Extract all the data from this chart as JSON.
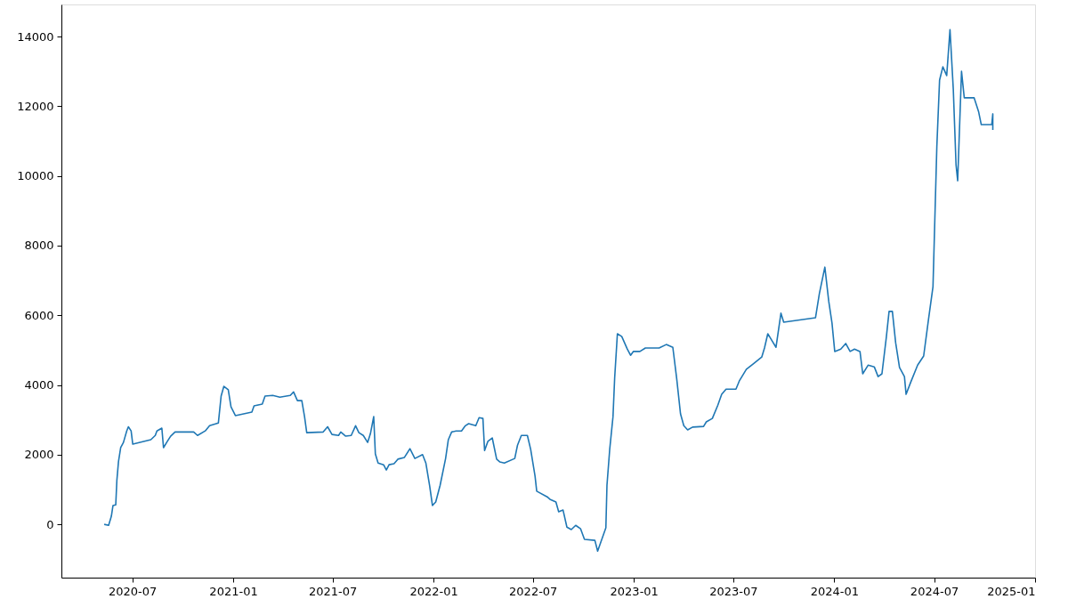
{
  "chart_data": {
    "type": "line",
    "x": [
      "2020-05-11",
      "2020-05-19",
      "2020-05-24",
      "2020-05-27",
      "2020-06-01",
      "2020-06-03",
      "2020-06-06",
      "2020-06-10",
      "2020-06-15",
      "2020-06-21",
      "2020-06-24",
      "2020-06-29",
      "2020-07-02",
      "2020-08-04",
      "2020-08-12",
      "2020-08-15",
      "2020-08-24",
      "2020-08-27",
      "2020-09-03",
      "2020-09-09",
      "2020-09-17",
      "2020-10-21",
      "2020-10-28",
      "2020-11-11",
      "2020-11-19",
      "2020-12-05",
      "2020-12-10",
      "2020-12-15",
      "2020-12-23",
      "2020-12-28",
      "2021-01-05",
      "2021-02-04",
      "2021-02-08",
      "2021-02-23",
      "2021-02-28",
      "2021-03-14",
      "2021-03-27",
      "2021-04-15",
      "2021-04-21",
      "2021-04-28",
      "2021-05-06",
      "2021-05-11",
      "2021-05-15",
      "2021-06-14",
      "2021-06-22",
      "2021-06-30",
      "2021-07-12",
      "2021-07-16",
      "2021-07-25",
      "2021-08-04",
      "2021-08-12",
      "2021-08-18",
      "2021-08-26",
      "2021-09-03",
      "2021-09-08",
      "2021-09-14",
      "2021-09-17",
      "2021-09-22",
      "2021-10-02",
      "2021-10-07",
      "2021-10-12",
      "2021-10-21",
      "2021-10-28",
      "2021-11-09",
      "2021-11-19",
      "2021-11-28",
      "2021-12-12",
      "2021-12-18",
      "2021-12-25",
      "2021-12-30",
      "2022-01-05",
      "2022-01-13",
      "2022-01-23",
      "2022-01-28",
      "2022-02-03",
      "2022-02-11",
      "2022-02-21",
      "2022-02-28",
      "2022-03-06",
      "2022-03-19",
      "2022-03-25",
      "2022-04-01",
      "2022-04-04",
      "2022-04-10",
      "2022-04-18",
      "2022-04-26",
      "2022-05-02",
      "2022-05-10",
      "2022-05-29",
      "2022-06-03",
      "2022-06-10",
      "2022-06-21",
      "2022-06-27",
      "2022-07-05",
      "2022-07-08",
      "2022-07-27",
      "2022-08-01",
      "2022-08-12",
      "2022-08-17",
      "2022-08-25",
      "2022-09-01",
      "2022-09-09",
      "2022-09-17",
      "2022-09-26",
      "2022-10-03",
      "2022-10-22",
      "2022-10-27",
      "2022-11-11",
      "2022-11-13",
      "2022-11-18",
      "2022-11-24",
      "2022-11-27",
      "2022-12-02",
      "2022-12-10",
      "2022-12-20",
      "2022-12-26",
      "2022-12-31",
      "2023-01-12",
      "2023-01-22",
      "2023-02-16",
      "2023-03-01",
      "2023-03-13",
      "2023-03-20",
      "2023-03-27",
      "2023-04-02",
      "2023-04-09",
      "2023-04-18",
      "2023-05-08",
      "2023-05-13",
      "2023-05-24",
      "2023-06-03",
      "2023-06-10",
      "2023-06-18",
      "2023-07-06",
      "2023-07-12",
      "2023-07-25",
      "2023-08-06",
      "2023-08-22",
      "2023-08-27",
      "2023-09-02",
      "2023-09-10",
      "2023-09-17",
      "2023-09-26",
      "2023-10-01",
      "2023-11-28",
      "2023-12-05",
      "2023-12-15",
      "2023-12-22",
      "2023-12-28",
      "2024-01-02",
      "2024-01-13",
      "2024-01-22",
      "2024-01-30",
      "2024-02-07",
      "2024-02-17",
      "2024-02-22",
      "2024-03-03",
      "2024-03-14",
      "2024-03-21",
      "2024-03-28",
      "2024-04-05",
      "2024-04-10",
      "2024-04-16",
      "2024-04-22",
      "2024-04-29",
      "2024-05-08",
      "2024-05-11",
      "2024-05-19",
      "2024-06-01",
      "2024-06-12",
      "2024-06-21",
      "2024-06-29",
      "2024-07-06",
      "2024-07-11",
      "2024-07-17",
      "2024-07-24",
      "2024-07-30",
      "2024-08-05",
      "2024-08-10",
      "2024-08-13",
      "2024-08-20",
      "2024-08-25",
      "2024-09-12",
      "2024-09-20",
      "2024-09-25",
      "2024-10-14",
      "2024-10-16",
      "2024-10-16"
    ],
    "series": [
      {
        "color": "#1f77b4",
        "values": [
          0,
          -30,
          230,
          540,
          560,
          1250,
          1800,
          2200,
          2350,
          2680,
          2800,
          2680,
          2300,
          2430,
          2550,
          2680,
          2760,
          2200,
          2380,
          2530,
          2650,
          2650,
          2550,
          2680,
          2830,
          2910,
          3680,
          3960,
          3860,
          3370,
          3120,
          3220,
          3400,
          3450,
          3680,
          3700,
          3650,
          3700,
          3800,
          3550,
          3550,
          3090,
          2630,
          2650,
          2800,
          2580,
          2550,
          2650,
          2530,
          2550,
          2830,
          2630,
          2550,
          2350,
          2600,
          3090,
          2020,
          1760,
          1710,
          1560,
          1710,
          1740,
          1870,
          1920,
          2170,
          1890,
          2000,
          1760,
          1100,
          540,
          640,
          1120,
          1890,
          2430,
          2650,
          2680,
          2680,
          2830,
          2890,
          2830,
          3060,
          3040,
          2120,
          2380,
          2480,
          1870,
          1790,
          1760,
          1890,
          2270,
          2550,
          2550,
          2150,
          1380,
          950,
          790,
          720,
          640,
          360,
          410,
          -80,
          -150,
          -30,
          -130,
          -430,
          -460,
          -770,
          -100,
          1120,
          2150,
          3090,
          4190,
          5470,
          5390,
          5030,
          4850,
          4960,
          4960,
          5060,
          5060,
          5160,
          5080,
          4190,
          3170,
          2830,
          2710,
          2790,
          2810,
          2940,
          3040,
          3420,
          3730,
          3880,
          3880,
          4110,
          4450,
          4600,
          4800,
          5060,
          5470,
          5260,
          5080,
          6060,
          5800,
          5930,
          6620,
          7380,
          6410,
          5780,
          4960,
          5030,
          5190,
          4960,
          5030,
          4960,
          4320,
          4570,
          4520,
          4240,
          4320,
          5370,
          6110,
          6110,
          5210,
          4500,
          4240,
          3730,
          4060,
          4570,
          4830,
          5900,
          6820,
          10830,
          12750,
          13130,
          12880,
          14200,
          12490,
          10320,
          9860,
          13000,
          12240,
          12240,
          11850,
          11470,
          11470,
          11780,
          11320
        ]
      }
    ],
    "xlim": [
      "2020-02-23",
      "2025-01-01"
    ],
    "xticks": [
      {
        "value": "2020-07-01",
        "label": "2020-07"
      },
      {
        "value": "2021-01-01",
        "label": "2021-01"
      },
      {
        "value": "2021-07-01",
        "label": "2021-07"
      },
      {
        "value": "2022-01-01",
        "label": "2022-01"
      },
      {
        "value": "2022-07-01",
        "label": "2022-07"
      },
      {
        "value": "2023-01-01",
        "label": "2023-01"
      },
      {
        "value": "2023-07-01",
        "label": "2023-07"
      },
      {
        "value": "2024-01-01",
        "label": "2024-01"
      },
      {
        "value": "2024-07-01",
        "label": "2024-07"
      },
      {
        "value": "2025-01-01",
        "label": "2025-01"
      }
    ],
    "ylim": [
      -1530,
      14920
    ],
    "yticks": [
      0,
      2000,
      4000,
      6000,
      8000,
      10000,
      12000,
      14000
    ],
    "grid": false,
    "marker": "none",
    "line_style": "solid"
  }
}
